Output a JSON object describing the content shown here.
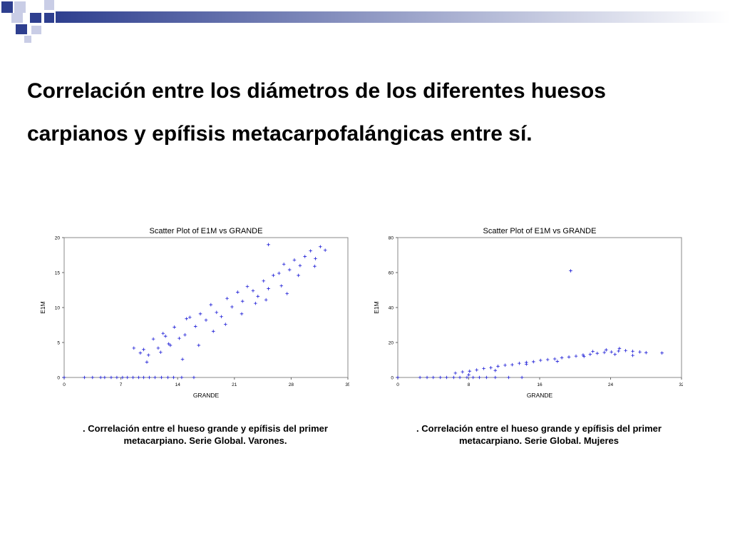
{
  "slide": {
    "title_line1": "Correlación entre los diámetros de los  diferentes huesos",
    "title_line2": "carpianos y epífisis metacarpofalángicas entre sí.",
    "accent_color": "#2e3f8f",
    "light_accent_color": "#c9cde6"
  },
  "captions": {
    "left": ". Correlación entre el hueso grande y epífisis del primer metacarpiano. Serie Global. Varones.",
    "right": ". Correlación entre el hueso grande y epífisis del primer metacarpiano. Serie Global. Mujeres"
  },
  "chart_data": [
    {
      "type": "scatter",
      "title": "Scatter Plot of E1M vs GRANDE",
      "xlabel": "GRANDE",
      "ylabel": "E1M",
      "xlim": [
        0,
        35
      ],
      "ylim": [
        0,
        20
      ],
      "xticks": [
        0,
        7,
        14,
        21,
        28,
        35
      ],
      "yticks": [
        0,
        5,
        10,
        15,
        20
      ],
      "xtick_labels": [
        "0",
        "7",
        "14",
        "21",
        "28",
        "35"
      ],
      "ytick_labels": [
        "0",
        "5",
        "10",
        "15",
        "20"
      ],
      "marker": "+",
      "color": "#1a1ad6",
      "grid": false,
      "series": [
        {
          "x": [
            0.0,
            2.5,
            3.5,
            4.5,
            5.0,
            5.8,
            6.5,
            7.2,
            7.8,
            8.5,
            9.2,
            9.8,
            10.5,
            11.2,
            12.0,
            12.8,
            13.5,
            14.5,
            16.0,
            9.8,
            10.4,
            11.0,
            11.6,
            12.2,
            12.9,
            13.6,
            14.2,
            14.9,
            15.5,
            16.2,
            16.8,
            17.5,
            18.1,
            18.8,
            19.4,
            20.1,
            20.7,
            21.4,
            22.0,
            22.6,
            23.3,
            23.9,
            24.6,
            25.2,
            25.8,
            26.5,
            27.1,
            27.8,
            28.4,
            29.1,
            29.7,
            30.4,
            31.0,
            31.6,
            32.2,
            10.2,
            11.9,
            13.1,
            14.6,
            16.6,
            18.4,
            19.9,
            21.9,
            23.6,
            24.9,
            26.8,
            28.9,
            30.9,
            25.2,
            27.5,
            8.6,
            9.4,
            12.5,
            15.1
          ],
          "y": [
            0.0,
            0.0,
            0.0,
            0.0,
            0.0,
            0.0,
            0.0,
            0.0,
            0.0,
            0.0,
            0.0,
            0.0,
            0.0,
            0.0,
            0.0,
            0.0,
            0.0,
            0.0,
            0.0,
            4.0,
            3.2,
            5.5,
            4.2,
            6.3,
            4.8,
            7.2,
            5.6,
            6.1,
            8.6,
            7.3,
            9.1,
            8.2,
            10.4,
            9.3,
            8.7,
            11.3,
            10.1,
            12.2,
            10.9,
            13.0,
            12.4,
            11.6,
            13.8,
            12.7,
            14.6,
            14.9,
            16.2,
            15.4,
            16.8,
            16.0,
            17.3,
            18.1,
            17.0,
            18.7,
            18.2,
            2.2,
            3.6,
            4.6,
            2.6,
            4.6,
            6.6,
            7.6,
            9.1,
            10.6,
            11.1,
            13.1,
            14.6,
            15.9,
            19.0,
            12.0,
            4.2,
            3.5,
            5.9,
            8.4
          ]
        }
      ]
    },
    {
      "type": "scatter",
      "title": "Scatter Plot of E1M vs GRANDE",
      "xlabel": "GRANDE",
      "ylabel": "E1M",
      "xlim": [
        0,
        32
      ],
      "ylim": [
        0,
        80
      ],
      "xticks": [
        0,
        8,
        16,
        24,
        32
      ],
      "yticks": [
        0,
        20,
        40,
        60,
        80
      ],
      "xtick_labels": [
        "0",
        "8",
        "16",
        "24",
        "32"
      ],
      "ytick_labels": [
        "0",
        "20",
        "40",
        "60",
        "80"
      ],
      "marker": "+",
      "color": "#1a1ad6",
      "grid": false,
      "series": [
        {
          "x": [
            0.0,
            2.5,
            3.3,
            4.0,
            4.8,
            5.5,
            6.3,
            7.0,
            7.8,
            8.5,
            9.2,
            10.0,
            11.0,
            12.5,
            14.0,
            6.5,
            7.3,
            8.1,
            8.9,
            9.7,
            10.5,
            11.3,
            12.1,
            12.9,
            13.7,
            14.5,
            15.3,
            16.1,
            16.9,
            17.7,
            18.5,
            19.3,
            20.1,
            20.9,
            21.7,
            22.5,
            23.3,
            24.1,
            24.9,
            25.7,
            26.5,
            27.3,
            28.0,
            25.0,
            24.5,
            26.5,
            22.0,
            29.8,
            19.5,
            8.0,
            11.0,
            14.5,
            18.0,
            21.0,
            23.5
          ],
          "y": [
            0.0,
            0.0,
            0.0,
            0.0,
            0.0,
            0.0,
            0.0,
            0.0,
            0.0,
            0.0,
            0.0,
            0.0,
            0.0,
            0.0,
            0.0,
            2.5,
            3.2,
            3.6,
            4.3,
            5.1,
            5.6,
            6.4,
            7.0,
            7.3,
            8.1,
            8.6,
            9.0,
            9.8,
            10.2,
            10.6,
            11.3,
            11.7,
            12.2,
            12.9,
            13.2,
            13.8,
            14.3,
            14.6,
            15.1,
            15.4,
            15.0,
            14.6,
            14.2,
            16.6,
            13.2,
            12.6,
            14.9,
            14.0,
            61.0,
            1.5,
            4.0,
            7.6,
            9.2,
            12.0,
            15.8
          ]
        }
      ]
    }
  ]
}
